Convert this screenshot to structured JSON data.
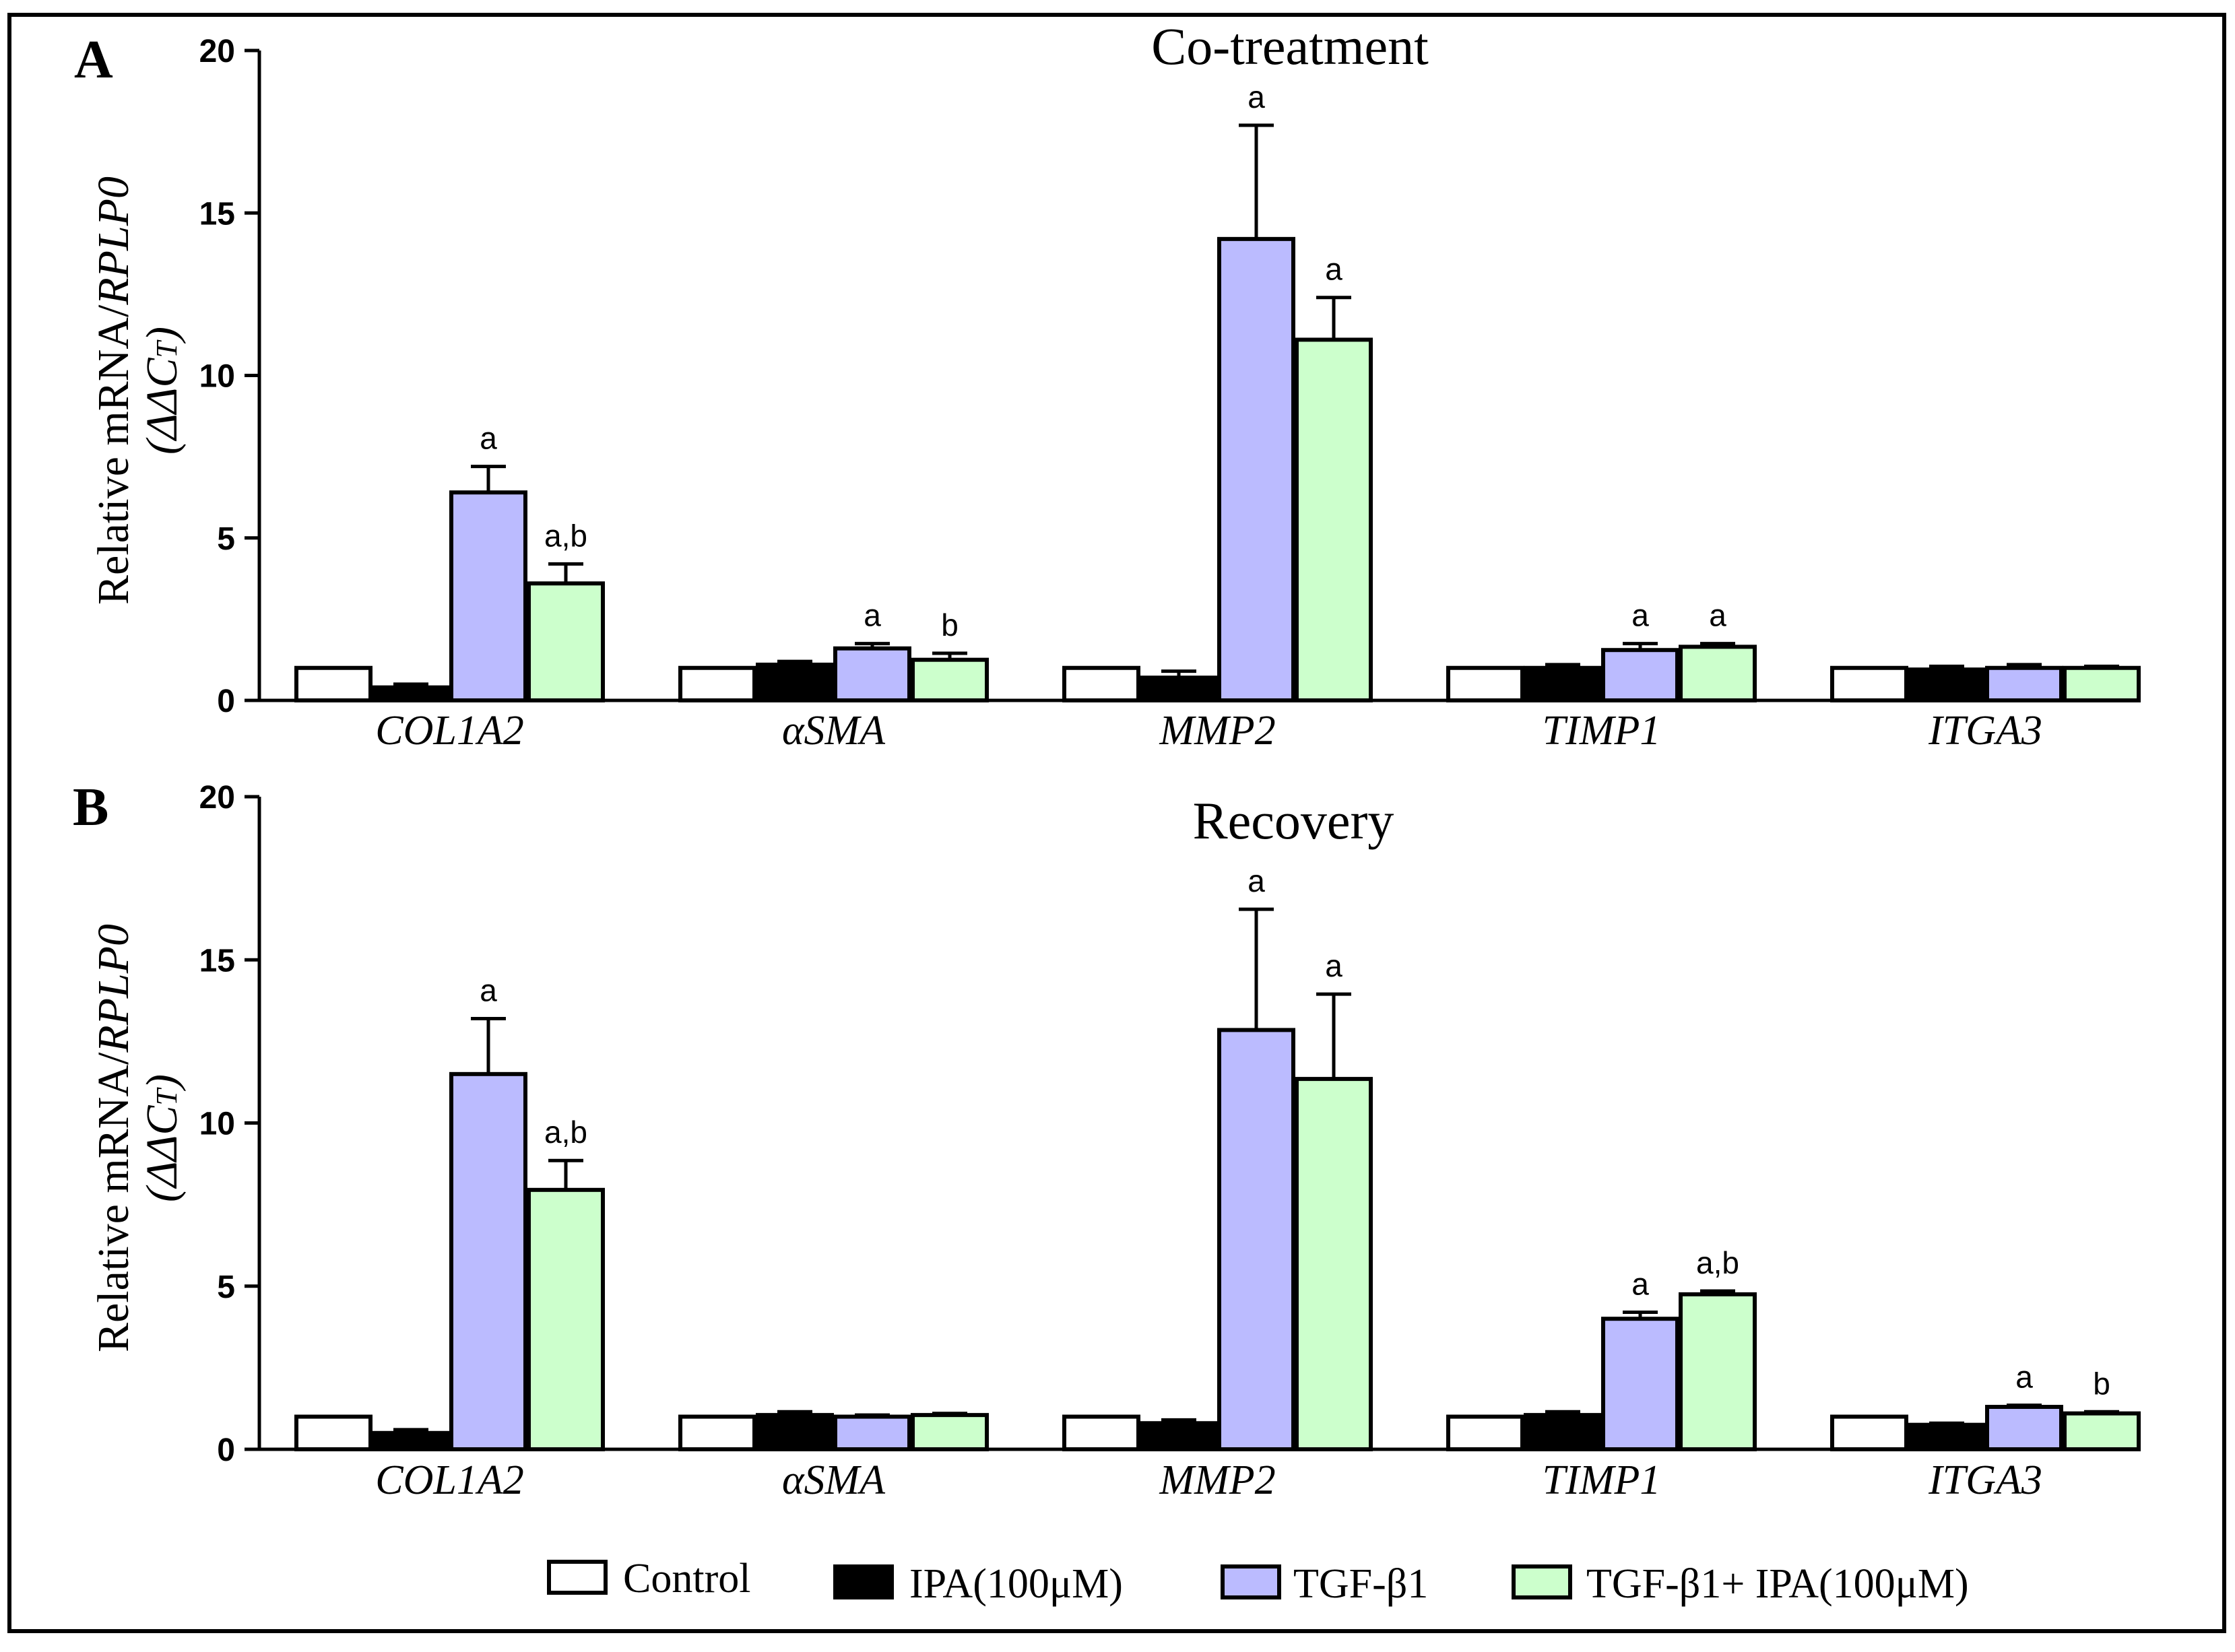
{
  "colors": {
    "frame": "#000000",
    "series": [
      "#ffffff",
      "#000000",
      "#bbbbff",
      "#ccffcc"
    ]
  },
  "legend": [
    "Control",
    "IPA(100μM)",
    "TGF-β1",
    "TGF-β1+ IPA(100μM)"
  ],
  "chart_data": [
    {
      "type": "bar",
      "panel": "A",
      "title": "Co-treatment",
      "ylabel": "Relative mRNA/RPLP0",
      "ylabel_prefix": "Relative mRNA/",
      "ylabel_gene": "RPLP0",
      "ylabel2": "(ΔΔCT)",
      "ylabel2_main": "(ΔΔC",
      "ylabel2_sub": "T",
      "ylabel2_close": ")",
      "ylim": [
        0,
        20
      ],
      "yticks": [
        0,
        5,
        10,
        15,
        20
      ],
      "categories": [
        "COL1A2",
        "αSMA",
        "MMP2",
        "TIMP1",
        "ITGA3"
      ],
      "series": [
        {
          "name": "Control",
          "values": [
            1.0,
            1.0,
            1.0,
            1.0,
            1.0
          ],
          "errors": [
            0,
            0,
            0,
            0,
            0
          ],
          "labels": [
            "",
            "",
            "",
            "",
            ""
          ]
        },
        {
          "name": "IPA(100μM)",
          "values": [
            0.4,
            1.1,
            0.7,
            1.0,
            0.95
          ],
          "errors": [
            0.1,
            0.1,
            0.2,
            0.1,
            0.1
          ],
          "labels": [
            "",
            "",
            "",
            "",
            ""
          ]
        },
        {
          "name": "TGF-β1",
          "values": [
            6.4,
            1.6,
            14.2,
            1.55,
            1.0
          ],
          "errors": [
            0.8,
            0.15,
            3.5,
            0.2,
            0.1
          ],
          "labels": [
            "a",
            "a",
            "a",
            "a",
            ""
          ]
        },
        {
          "name": "TGF-β1+ IPA(100μM)",
          "values": [
            3.6,
            1.25,
            11.1,
            1.65,
            1.0
          ],
          "errors": [
            0.6,
            0.2,
            1.3,
            0.1,
            0.05
          ],
          "labels": [
            "a,b",
            "b",
            "a",
            "a",
            ""
          ]
        }
      ]
    },
    {
      "type": "bar",
      "panel": "B",
      "title": "Recovery",
      "ylabel": "Relative mRNA/RPLP0",
      "ylabel_prefix": "Relative mRNA/",
      "ylabel_gene": "RPLP0",
      "ylabel2": "(ΔΔCT)",
      "ylabel2_main": "(ΔΔC",
      "ylabel2_sub": "T",
      "ylabel2_close": ")",
      "ylim": [
        0,
        20
      ],
      "yticks": [
        0,
        5,
        10,
        15,
        20
      ],
      "categories": [
        "COL1A2",
        "αSMA",
        "MMP2",
        "TIMP1",
        "ITGA3"
      ],
      "series": [
        {
          "name": "Control",
          "values": [
            1.0,
            1.0,
            1.0,
            1.0,
            1.0
          ],
          "errors": [
            0,
            0,
            0,
            0,
            0
          ],
          "labels": [
            "",
            "",
            "",
            "",
            ""
          ]
        },
        {
          "name": "IPA(100μM)",
          "values": [
            0.5,
            1.05,
            0.8,
            1.05,
            0.75
          ],
          "errors": [
            0.1,
            0.1,
            0.1,
            0.1,
            0.05
          ],
          "labels": [
            "",
            "",
            "",
            "",
            ""
          ]
        },
        {
          "name": "TGF-β1",
          "values": [
            11.5,
            1.0,
            12.85,
            4.0,
            1.3
          ],
          "errors": [
            1.7,
            0.05,
            3.7,
            0.2,
            0.05
          ],
          "labels": [
            "a",
            "",
            "a",
            "a",
            "a"
          ]
        },
        {
          "name": "TGF-β1+ IPA(100μM)",
          "values": [
            7.95,
            1.05,
            11.35,
            4.75,
            1.1
          ],
          "errors": [
            0.9,
            0.05,
            2.6,
            0.1,
            0.05
          ],
          "labels": [
            "a,b",
            "",
            "a",
            "a,b",
            "b"
          ]
        }
      ]
    }
  ]
}
